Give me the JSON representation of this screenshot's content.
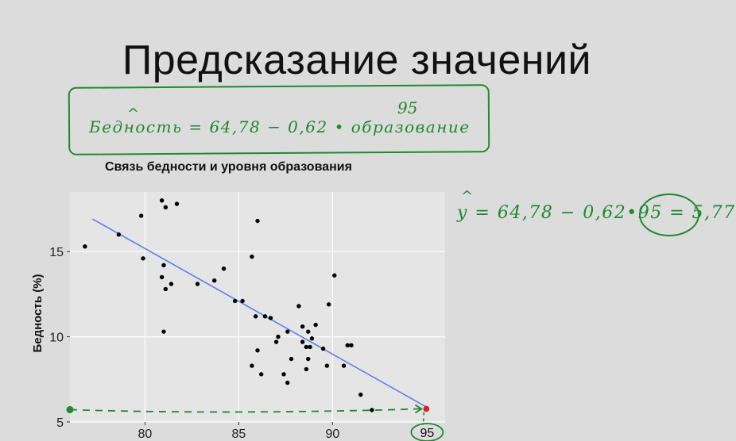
{
  "slide": {
    "title": "Предсказание значений"
  },
  "annotations": {
    "hat_symbol": "^",
    "formula": "Бедность = 64,78 − 0,62 • образование",
    "formula_substitute": "95",
    "prediction": "y = 64,78 − 0,62•95 = 5,77",
    "prediction_result": "5,77",
    "highlight_x": "95",
    "ink_color": "#1f8a2e"
  },
  "chart_data": {
    "type": "scatter",
    "title": "Связь бедности и уровня образования",
    "xlabel": "",
    "ylabel": "Бедность (%)",
    "xlim": [
      76,
      96
    ],
    "ylim": [
      5,
      18.5
    ],
    "x_ticks": [
      80,
      85,
      90
    ],
    "x_tick_labels": [
      "80",
      "85",
      "90"
    ],
    "y_ticks": [
      5,
      10,
      15
    ],
    "y_tick_labels": [
      "5",
      "10",
      "15"
    ],
    "grid": true,
    "background": "#e5e5e5",
    "point_color": "#000000",
    "regression": {
      "intercept": 64.78,
      "slope": -0.62,
      "x_start": 77.2,
      "x_end": 95,
      "color": "#5a82f0"
    },
    "prediction_point": {
      "x": 95,
      "y": 5.77,
      "color": "#e02020"
    },
    "points": [
      [
        76.8,
        15.3
      ],
      [
        78.6,
        16.0
      ],
      [
        79.8,
        17.1
      ],
      [
        79.9,
        14.6
      ],
      [
        80.9,
        18.0
      ],
      [
        81.1,
        17.6
      ],
      [
        81.7,
        17.8
      ],
      [
        80.9,
        13.5
      ],
      [
        81.0,
        14.2
      ],
      [
        81.1,
        12.8
      ],
      [
        81.4,
        13.1
      ],
      [
        81.0,
        10.3
      ],
      [
        82.8,
        13.1
      ],
      [
        83.7,
        13.3
      ],
      [
        84.2,
        14.0
      ],
      [
        84.8,
        12.1
      ],
      [
        85.2,
        12.1
      ],
      [
        85.7,
        14.7
      ],
      [
        86.0,
        16.8
      ],
      [
        85.9,
        11.2
      ],
      [
        86.4,
        11.2
      ],
      [
        86.7,
        11.1
      ],
      [
        87.0,
        9.7
      ],
      [
        87.1,
        10.0
      ],
      [
        87.6,
        10.3
      ],
      [
        86.0,
        9.2
      ],
      [
        85.7,
        8.3
      ],
      [
        86.2,
        7.8
      ],
      [
        87.4,
        7.8
      ],
      [
        87.6,
        7.3
      ],
      [
        87.8,
        8.7
      ],
      [
        88.2,
        11.8
      ],
      [
        88.4,
        10.6
      ],
      [
        88.4,
        9.7
      ],
      [
        88.6,
        9.4
      ],
      [
        88.7,
        10.3
      ],
      [
        88.7,
        8.7
      ],
      [
        88.8,
        9.4
      ],
      [
        88.9,
        9.9
      ],
      [
        89.1,
        10.7
      ],
      [
        88.6,
        8.1
      ],
      [
        89.5,
        9.3
      ],
      [
        89.8,
        11.9
      ],
      [
        89.7,
        8.3
      ],
      [
        90.1,
        13.6
      ],
      [
        90.6,
        8.3
      ],
      [
        90.8,
        9.5
      ],
      [
        91.0,
        9.5
      ],
      [
        91.5,
        6.6
      ],
      [
        92.1,
        5.7
      ]
    ]
  }
}
